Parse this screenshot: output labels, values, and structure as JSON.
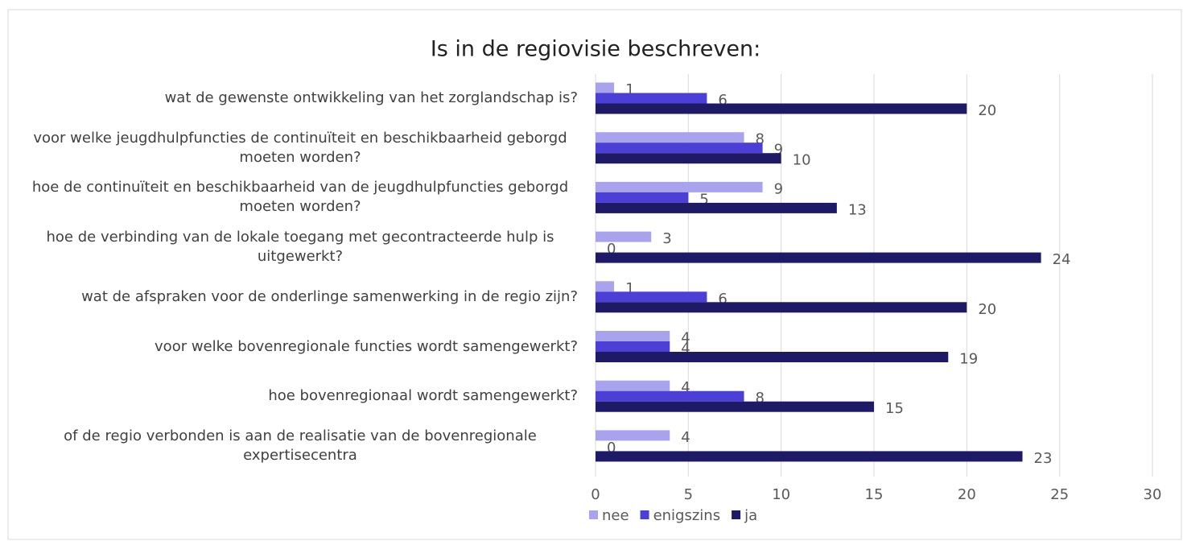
{
  "chart_data": {
    "type": "bar",
    "orientation": "horizontal",
    "title": "Is in de regiovisie beschreven:",
    "categories": [
      "wat de gewenste ontwikkeling van het zorglandschap is?",
      "voor welke jeugdhulpfuncties de continuïteit en beschikbaarheid geborgd moeten worden?",
      "hoe de continuïteit en beschikbaarheid van de jeugdhulpfuncties geborgd moeten worden?",
      "hoe de verbinding van de lokale toegang met gecontracteerde hulp is uitgewerkt?",
      "wat de afspraken voor de onderlinge samenwerking in de regio zijn?",
      "voor welke bovenregionale functies wordt samengewerkt?",
      "hoe bovenregionaal wordt samengewerkt?",
      "of de regio verbonden is aan de realisatie van de bovenregionale expertisecentra"
    ],
    "series": [
      {
        "name": "nee",
        "color": "#a9a3ee",
        "values": [
          1,
          8,
          9,
          3,
          1,
          4,
          4,
          4
        ]
      },
      {
        "name": "enigszins",
        "color": "#4b3fd6",
        "values": [
          6,
          9,
          5,
          0,
          6,
          4,
          8,
          0
        ]
      },
      {
        "name": "ja",
        "color": "#1f1a66",
        "values": [
          20,
          10,
          13,
          24,
          20,
          19,
          15,
          23
        ]
      }
    ],
    "xlim": [
      0,
      30
    ],
    "xticks": [
      0,
      5,
      10,
      15,
      20,
      25,
      30
    ],
    "grid": true,
    "legend": "bottom"
  }
}
